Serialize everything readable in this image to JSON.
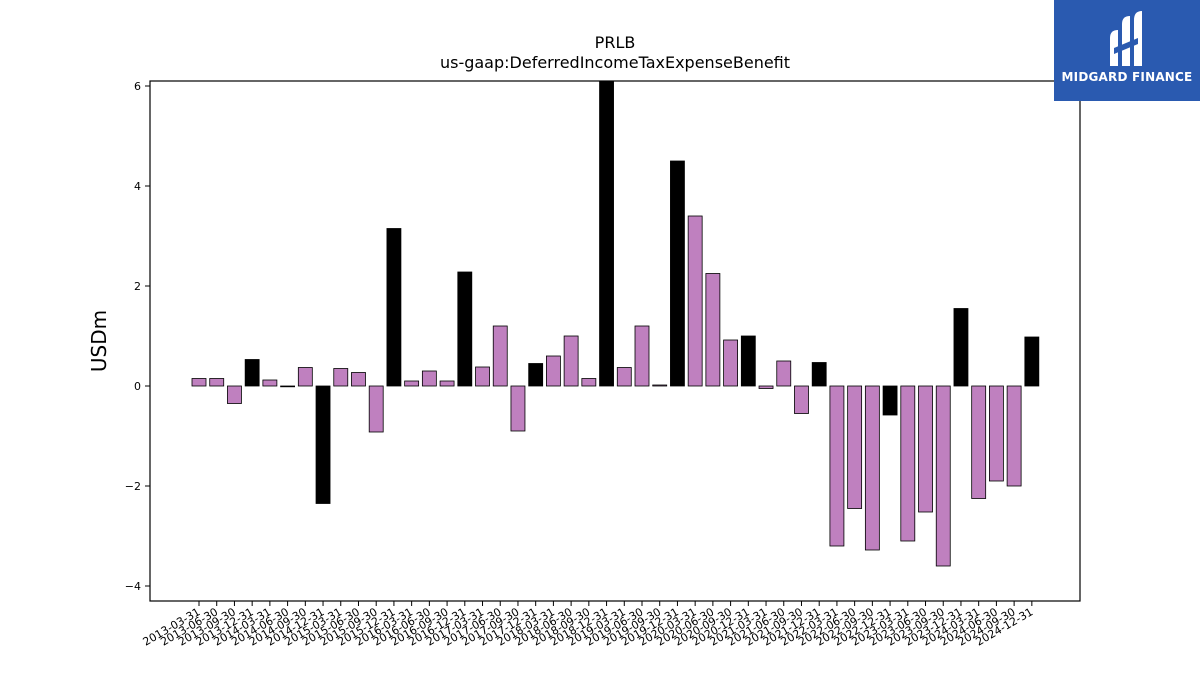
{
  "chart_data": {
    "type": "bar",
    "title": "PRLB",
    "subtitle": "us-gaap:DeferredIncomeTaxExpenseBenefit",
    "xlabel": "",
    "ylabel": "USDm",
    "ylim": [
      -4.3,
      6.1
    ],
    "yticks": [
      -4,
      -2,
      0,
      2,
      4,
      6
    ],
    "ytick_labels": [
      "−4",
      "−2",
      "0",
      "2",
      "4",
      "6"
    ],
    "grid": false,
    "colors": {
      "quarterly": "#bf80bf",
      "annual": "#000000",
      "edge": "#000000"
    },
    "categories": [
      "2013-03-31",
      "2013-06-30",
      "2013-09-30",
      "2013-12-31",
      "2014-03-31",
      "2014-06-30",
      "2014-09-30",
      "2014-12-31",
      "2015-03-31",
      "2015-06-30",
      "2015-09-30",
      "2015-12-31",
      "2016-03-31",
      "2016-06-30",
      "2016-09-30",
      "2016-12-31",
      "2017-03-31",
      "2017-06-30",
      "2017-09-30",
      "2017-12-31",
      "2018-03-31",
      "2018-06-30",
      "2018-09-30",
      "2018-12-31",
      "2019-03-31",
      "2019-06-30",
      "2019-09-30",
      "2019-12-31",
      "2020-03-31",
      "2020-06-30",
      "2020-09-30",
      "2020-12-31",
      "2021-03-31",
      "2021-06-30",
      "2021-09-30",
      "2021-12-31",
      "2022-03-31",
      "2022-06-30",
      "2022-09-30",
      "2022-12-31",
      "2023-03-31",
      "2023-06-30",
      "2023-09-30",
      "2023-12-31",
      "2024-03-31",
      "2024-06-30",
      "2024-09-30",
      "2024-12-31"
    ],
    "values": [
      0.15,
      0.15,
      -0.35,
      0.53,
      0.12,
      0.0,
      0.37,
      -2.35,
      0.35,
      0.27,
      -0.92,
      3.15,
      0.1,
      0.3,
      0.1,
      2.28,
      0.38,
      1.2,
      -0.9,
      0.45,
      0.6,
      1.0,
      0.15,
      6.1,
      0.37,
      1.2,
      0.02,
      4.5,
      3.4,
      2.25,
      0.92,
      1.0,
      -0.05,
      0.5,
      -0.55,
      0.47,
      -3.2,
      -2.45,
      -3.28,
      -0.58,
      -3.1,
      -2.52,
      -3.6,
      1.55,
      -2.25,
      -1.9,
      -2.0,
      0.98
    ],
    "annual": [
      false,
      false,
      false,
      true,
      false,
      false,
      false,
      true,
      false,
      false,
      false,
      true,
      false,
      false,
      false,
      true,
      false,
      false,
      false,
      true,
      false,
      false,
      false,
      true,
      false,
      false,
      false,
      true,
      false,
      false,
      false,
      true,
      false,
      false,
      false,
      true,
      false,
      false,
      false,
      true,
      false,
      false,
      false,
      true,
      false,
      false,
      false,
      true
    ]
  },
  "logo": {
    "brand": "MIDGARD FINANCE",
    "background": "#2a5ab0"
  }
}
